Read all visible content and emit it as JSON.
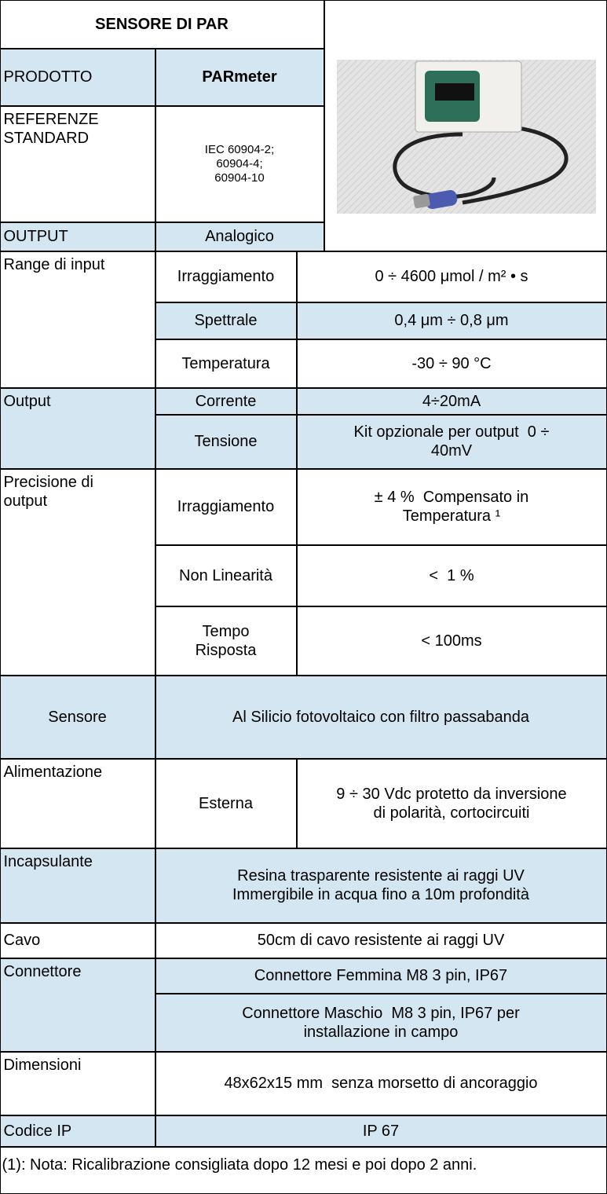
{
  "title": "SENSORE DI PAR",
  "product": {
    "label": "PRODOTTO",
    "value": "PARmeter"
  },
  "standard": {
    "label": [
      "REFERENZE",
      "STANDARD"
    ],
    "value": [
      "IEC 60904-2;",
      "60904-4;",
      "60904-10"
    ]
  },
  "output_type": {
    "label": "OUTPUT",
    "value": "Analogico"
  },
  "specs": [
    {
      "label": "Range di input",
      "items": [
        {
          "name": "Irraggiamento",
          "value": "0 ÷ 4600 μmol / m² • s"
        },
        {
          "name": "Spettrale",
          "value": "0,4 μm ÷ 0,8 μm"
        },
        {
          "name": "Temperatura",
          "value": "-30 ÷ 90 °C"
        }
      ]
    },
    {
      "label": "Output",
      "items": [
        {
          "name": "Corrente",
          "value": "4÷20mA"
        },
        {
          "name": "Tensione",
          "value": [
            "Kit opzionale per output  0 ÷",
            "40mV"
          ]
        }
      ]
    },
    {
      "label": [
        "Precisione di",
        "output"
      ],
      "items": [
        {
          "name": "Irraggiamento",
          "value": [
            "± 4 %  Compensato in",
            "Temperatura ¹"
          ]
        },
        {
          "name": "Non Linearità",
          "value": "<  1 %"
        },
        {
          "name": [
            "Tempo",
            "Risposta"
          ],
          "value": "< 100ms"
        }
      ]
    },
    {
      "label": "Sensore",
      "value": "Al Silicio fotovoltaico con filtro passabanda"
    },
    {
      "label": "Alimentazione",
      "items": [
        {
          "name": "Esterna",
          "value": [
            "9 ÷ 30 Vdc protetto da inversione",
            "di polarità, cortocircuiti"
          ]
        }
      ]
    },
    {
      "label": "Incapsulante",
      "value": [
        "Resina trasparente resistente ai raggi UV",
        "Immergibile in acqua fino a 10m profondità"
      ]
    },
    {
      "label": "Cavo",
      "value": "50cm di cavo resistente ai raggi UV"
    },
    {
      "label": "Connettore",
      "values": [
        "Connettore Femmina M8 3 pin, IP67",
        [
          "Connettore Maschio  M8 3 pin, IP67 per",
          "installazione in campo"
        ]
      ]
    },
    {
      "label": "Dimensioni",
      "value": "48x62x15 mm  senza morsetto di ancoraggio"
    },
    {
      "label": "Codice IP",
      "value": "IP 67"
    }
  ],
  "note": "(1): Nota: Ricalibrazione consigliata dopo 12 mesi e poi dopo 2 anni."
}
